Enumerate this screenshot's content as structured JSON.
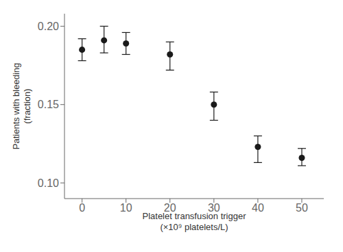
{
  "chart_data": {
    "type": "scatter",
    "x": [
      0,
      5,
      10,
      20,
      30,
      40,
      50
    ],
    "values": [
      0.185,
      0.191,
      0.189,
      0.182,
      0.15,
      0.123,
      0.116
    ],
    "yerr_upper": [
      0.007,
      0.009,
      0.007,
      0.008,
      0.008,
      0.007,
      0.006
    ],
    "yerr_lower": [
      0.007,
      0.008,
      0.007,
      0.01,
      0.01,
      0.01,
      0.005
    ],
    "xlabel": "Platelet transfusion trigger\n(×10⁹ platelets/L)",
    "ylabel": "Patients with bleeding\n(fraction)",
    "xlim": [
      -4,
      55
    ],
    "xticks": [
      0,
      10,
      20,
      30,
      40,
      50
    ],
    "ylim": [
      0.09,
      0.208
    ],
    "yticks": [
      {
        "value": 0.1,
        "label": "0.10"
      },
      0.15,
      {
        "value": 0.2,
        "label": "0.20"
      }
    ],
    "color": "#1a1a1a",
    "marker": "circle",
    "grid": false
  }
}
